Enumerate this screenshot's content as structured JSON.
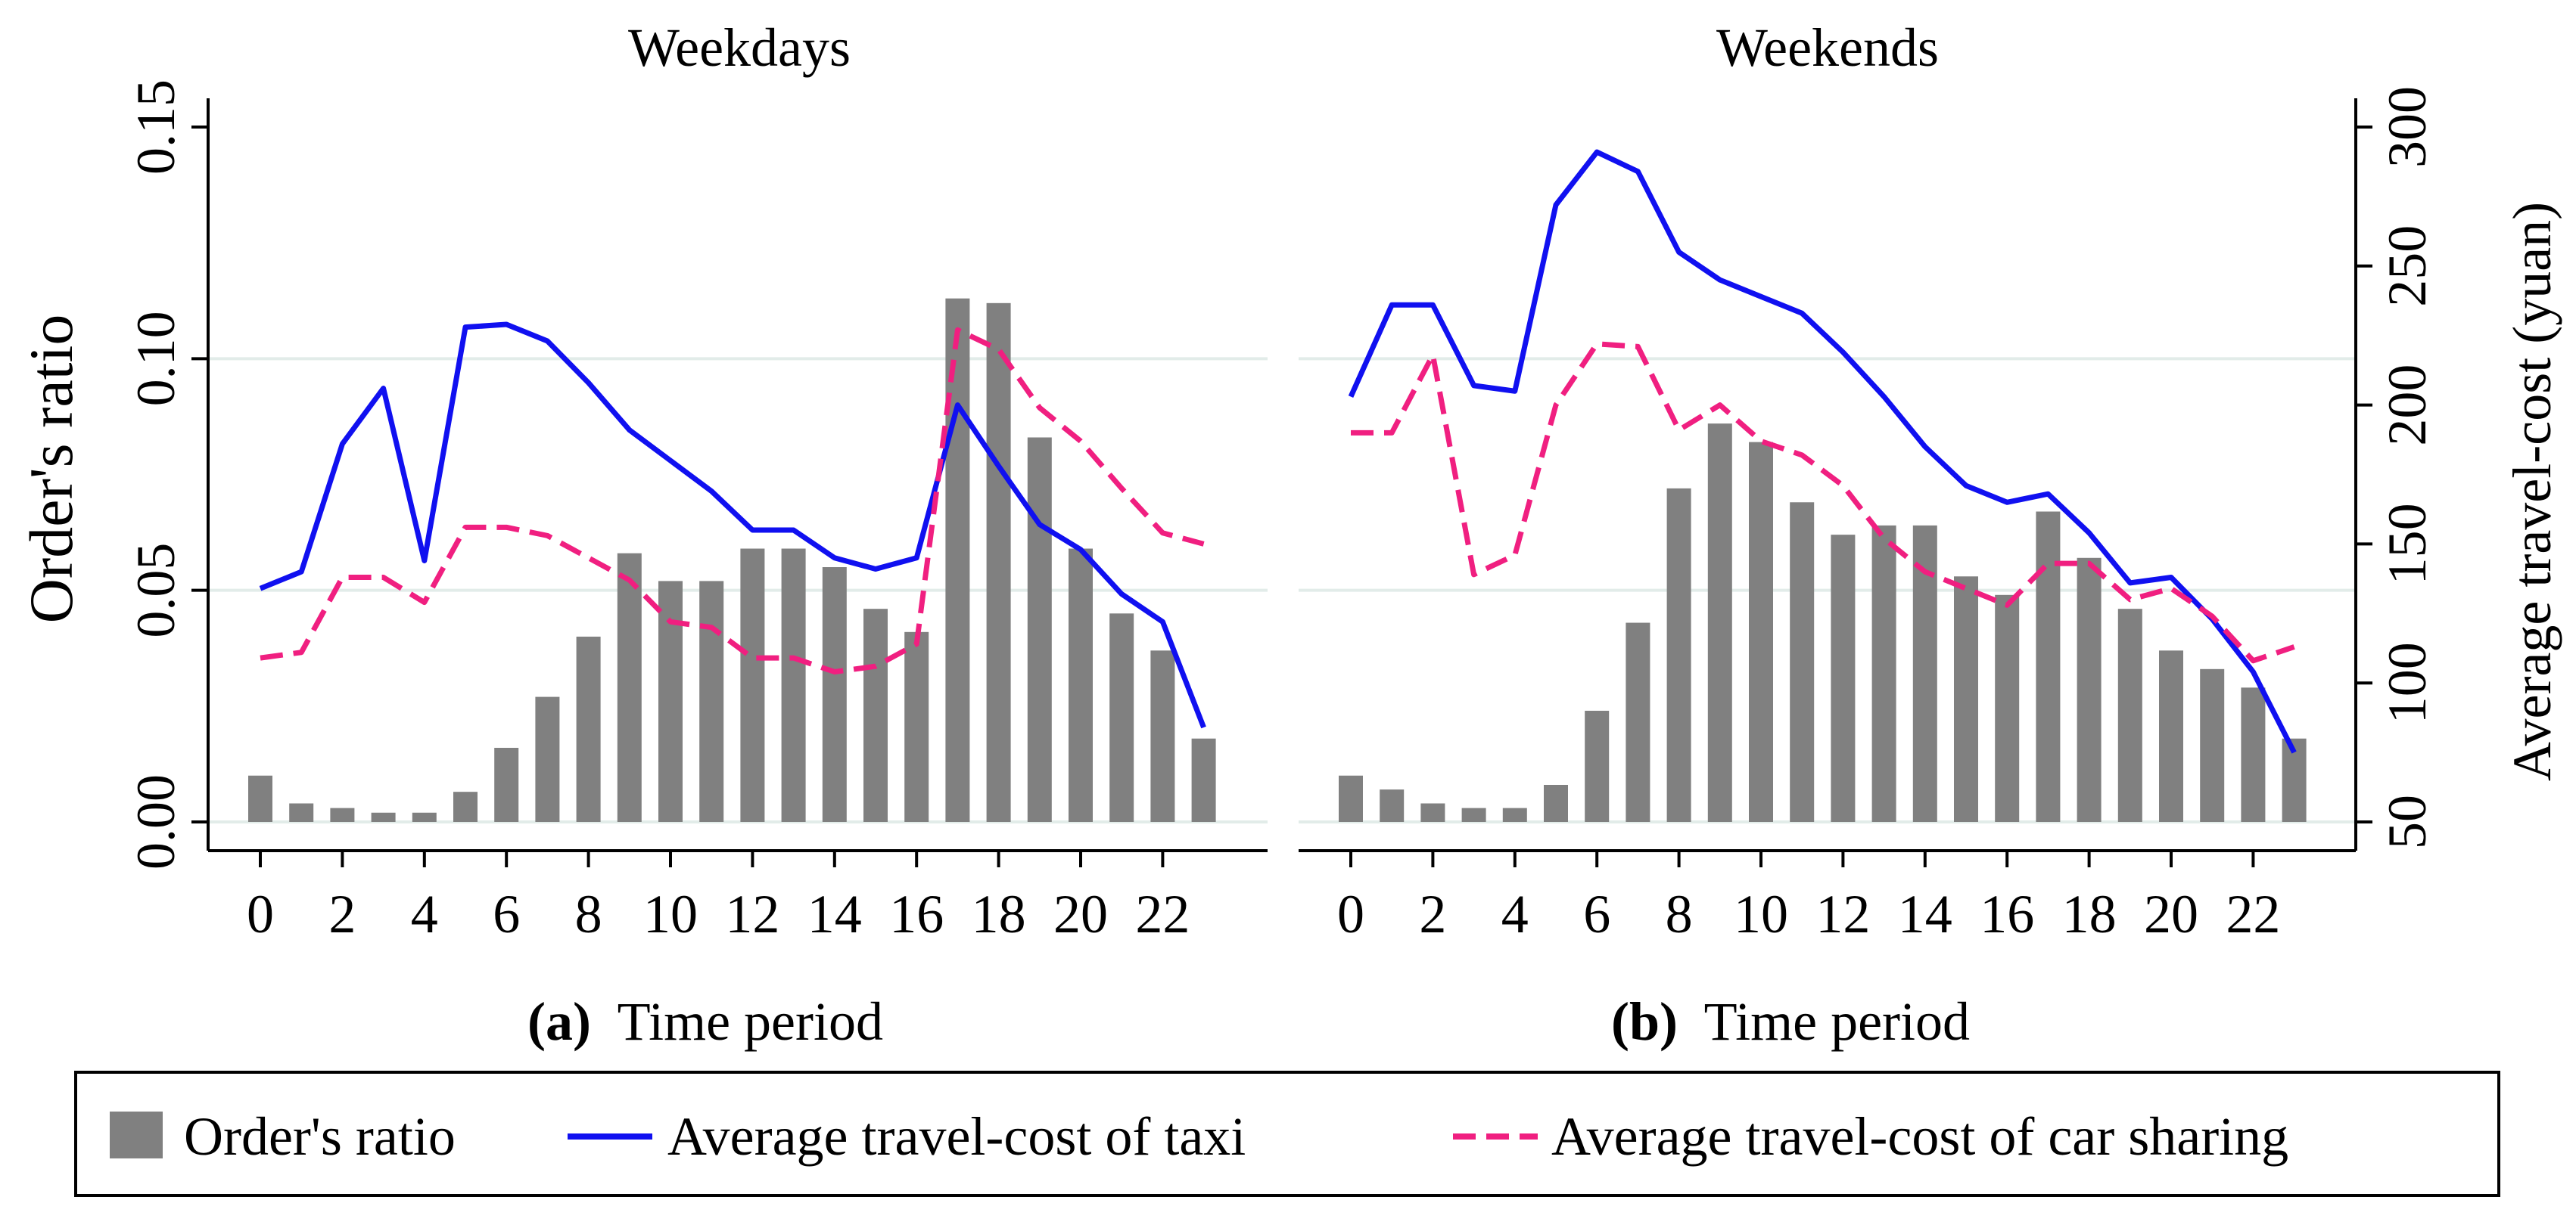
{
  "chart_data": [
    {
      "type": "bar+line",
      "title": "Weekdays",
      "panel_label": "(a)",
      "xlabel": "Time period",
      "ylabel": "Order's ratio",
      "y2label": "",
      "x": [
        0,
        1,
        2,
        3,
        4,
        5,
        6,
        7,
        8,
        9,
        10,
        11,
        12,
        13,
        14,
        15,
        16,
        17,
        18,
        19,
        20,
        21,
        22,
        23
      ],
      "xticks": [
        0,
        2,
        4,
        6,
        8,
        10,
        12,
        14,
        16,
        18,
        20,
        22
      ],
      "ylim": [
        0,
        0.15
      ],
      "yticks": [
        "0.00",
        "0.05",
        "0.10",
        "0.15"
      ],
      "y2lim": [
        50,
        300
      ],
      "y2ticks": [],
      "grid": true,
      "bars": {
        "name": "Order's ratio",
        "axis": "left",
        "values": [
          0.01,
          0.004,
          0.003,
          0.002,
          0.002,
          0.0065,
          0.016,
          0.027,
          0.04,
          0.058,
          0.052,
          0.052,
          0.059,
          0.059,
          0.055,
          0.046,
          0.041,
          0.113,
          0.112,
          0.083,
          0.059,
          0.045,
          0.037,
          0.018
        ]
      },
      "series": [
        {
          "name": "Average travel-cost of taxi",
          "axis": "right",
          "style": "solid",
          "values": [
            134,
            140,
            186,
            206,
            144,
            228,
            229,
            223,
            208,
            191,
            180,
            169,
            155,
            155,
            145,
            141,
            145,
            200,
            178,
            157,
            148,
            132,
            122,
            84
          ]
        },
        {
          "name": "Average travel-cost of car sharing",
          "axis": "right",
          "style": "dashed",
          "values": [
            109,
            111,
            138,
            138,
            129,
            156,
            156,
            153,
            145,
            137,
            122,
            120,
            109,
            109,
            104,
            106,
            114,
            227,
            220,
            199,
            187,
            170,
            154,
            150
          ]
        }
      ]
    },
    {
      "type": "bar+line",
      "title": "Weekends",
      "panel_label": "(b)",
      "xlabel": "Time period",
      "ylabel": "",
      "y2label": "Average travel-cost (yuan)",
      "x": [
        0,
        1,
        2,
        3,
        4,
        5,
        6,
        7,
        8,
        9,
        10,
        11,
        12,
        13,
        14,
        15,
        16,
        17,
        18,
        19,
        20,
        21,
        22,
        23
      ],
      "xticks": [
        0,
        2,
        4,
        6,
        8,
        10,
        12,
        14,
        16,
        18,
        20,
        22
      ],
      "ylim": [
        0,
        0.15
      ],
      "yticks": [],
      "y2lim": [
        50,
        300
      ],
      "y2ticks": [
        "50",
        "100",
        "150",
        "200",
        "250",
        "300"
      ],
      "grid": true,
      "bars": {
        "name": "Order's ratio",
        "axis": "left",
        "values": [
          0.01,
          0.007,
          0.004,
          0.003,
          0.003,
          0.008,
          0.024,
          0.043,
          0.072,
          0.086,
          0.082,
          0.069,
          0.062,
          0.064,
          0.064,
          0.053,
          0.049,
          0.067,
          0.057,
          0.046,
          0.037,
          0.033,
          0.029,
          0.018
        ]
      },
      "series": [
        {
          "name": "Average travel-cost of taxi",
          "axis": "right",
          "style": "solid",
          "values": [
            203,
            236,
            236,
            207,
            205,
            272,
            291,
            284,
            255,
            245,
            239,
            233,
            219,
            203,
            185,
            171,
            165,
            168,
            154,
            136,
            138,
            123,
            104,
            75
          ]
        },
        {
          "name": "Average travel-cost of car sharing",
          "axis": "right",
          "style": "dashed",
          "values": [
            190,
            190,
            218,
            139,
            146,
            200,
            222,
            221,
            191,
            200,
            187,
            182,
            171,
            152,
            140,
            134,
            128,
            143,
            143,
            130,
            134,
            124,
            108,
            113
          ]
        }
      ]
    }
  ],
  "legend": {
    "items": [
      {
        "label": "Order's ratio",
        "kind": "bar",
        "color": "#808080"
      },
      {
        "label": "Average travel-cost of taxi",
        "kind": "solid",
        "color": "#1010f0"
      },
      {
        "label": "Average travel-cost of car sharing",
        "kind": "dashed",
        "color": "#f01f80"
      }
    ]
  },
  "colors": {
    "bar": "#808080",
    "taxi": "#1010f0",
    "carshare": "#f01f80",
    "grid": "#e2ece9"
  }
}
